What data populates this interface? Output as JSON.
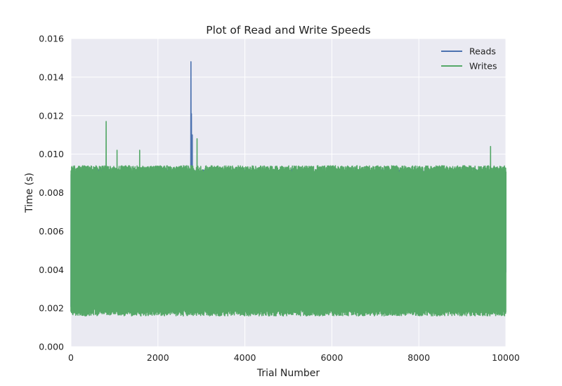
{
  "chart_data": {
    "type": "line",
    "title": "Plot of Read and Write Speeds",
    "xlabel": "Trial Number",
    "ylabel": "Time (s)",
    "xlim": [
      0,
      10000
    ],
    "ylim": [
      0.0,
      0.016
    ],
    "x_ticks": [
      0,
      2000,
      4000,
      6000,
      8000,
      10000
    ],
    "x_tick_labels": [
      "0",
      "2000",
      "4000",
      "6000",
      "8000",
      "10000"
    ],
    "y_ticks": [
      0.0,
      0.002,
      0.004,
      0.006,
      0.008,
      0.01,
      0.012,
      0.014,
      0.016
    ],
    "y_tick_labels": [
      "0.000",
      "0.002",
      "0.004",
      "0.006",
      "0.008",
      "0.010",
      "0.012",
      "0.014",
      "0.016"
    ],
    "grid": true,
    "legend_position": "top-right",
    "x_count": 10000,
    "series": [
      {
        "name": "Reads",
        "color": "#4c72b0",
        "typical_low": 0.0037,
        "typical_high": 0.0092,
        "occasional_low": 0.0019,
        "peaks": [
          {
            "x": 2760,
            "y": 0.0148
          },
          {
            "x": 2770,
            "y": 0.0121
          },
          {
            "x": 2790,
            "y": 0.011
          }
        ]
      },
      {
        "name": "Writes",
        "color": "#55a868",
        "typical_low": 0.0018,
        "typical_high": 0.0094,
        "occasional_low": 0.0017,
        "peaks": [
          {
            "x": 810,
            "y": 0.0117
          },
          {
            "x": 1060,
            "y": 0.0102
          },
          {
            "x": 1580,
            "y": 0.0102
          },
          {
            "x": 2900,
            "y": 0.0108
          },
          {
            "x": 9650,
            "y": 0.0104
          }
        ]
      }
    ]
  },
  "colors": {
    "plot_background": "#eaeaf2",
    "grid": "#ffffff",
    "text": "#222222"
  }
}
